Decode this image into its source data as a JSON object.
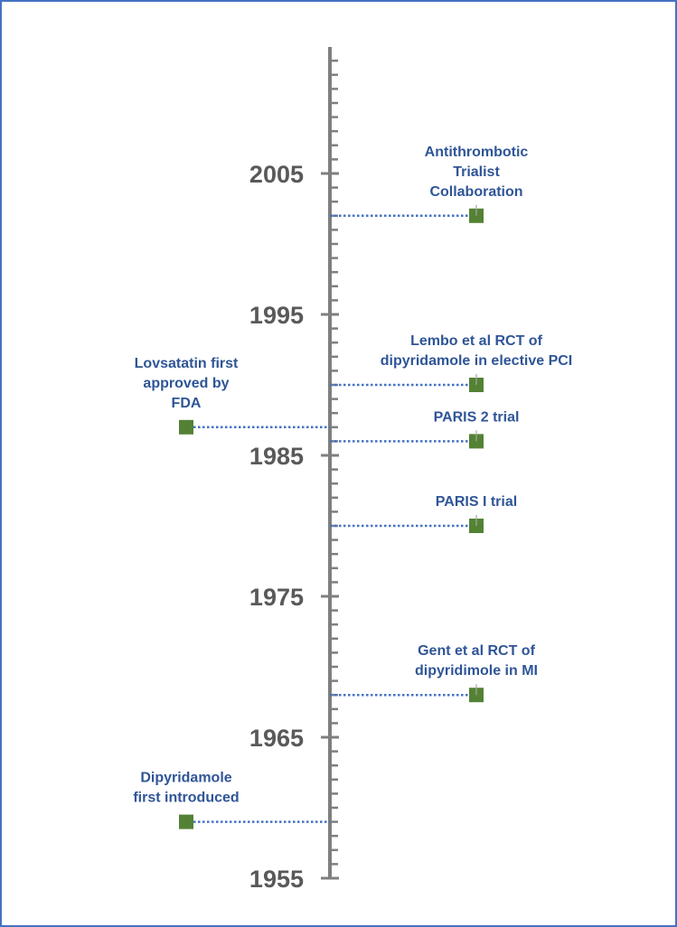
{
  "colors": {
    "border": "#4472C4",
    "axis": "#7F7F7F",
    "tick_label": "#595959",
    "event_label": "#2F5597",
    "connector": "#4472C4",
    "marker": "#548235"
  },
  "chart_data": {
    "type": "scatter",
    "title": "",
    "xlabel": "",
    "ylabel": "",
    "ylim": [
      1955,
      2005
    ],
    "y_ticks": [
      "1955",
      "1965",
      "1975",
      "1985",
      "1995",
      "2005"
    ],
    "events": [
      {
        "year": 1959,
        "side": "left",
        "label_lines": [
          "Dipyridamole",
          "first introduced"
        ]
      },
      {
        "year": 1968,
        "side": "right",
        "label_lines": [
          "Gent et al RCT of",
          "dipyridimole in MI"
        ]
      },
      {
        "year": 1980,
        "side": "right",
        "label_lines": [
          "PARIS I trial"
        ]
      },
      {
        "year": 1986,
        "side": "right",
        "label_lines": [
          "PARIS 2 trial"
        ]
      },
      {
        "year": 1987,
        "side": "left",
        "label_lines": [
          "Lovsatatin first",
          "approved by",
          "FDA"
        ]
      },
      {
        "year": 1990,
        "side": "right",
        "label_lines": [
          "Lembo et al RCT of",
          "dipyridamole in elective PCI"
        ]
      },
      {
        "year": 2002,
        "side": "right",
        "label_lines": [
          "Antithrombotic",
          "Trialist",
          "Collaboration"
        ]
      }
    ]
  }
}
